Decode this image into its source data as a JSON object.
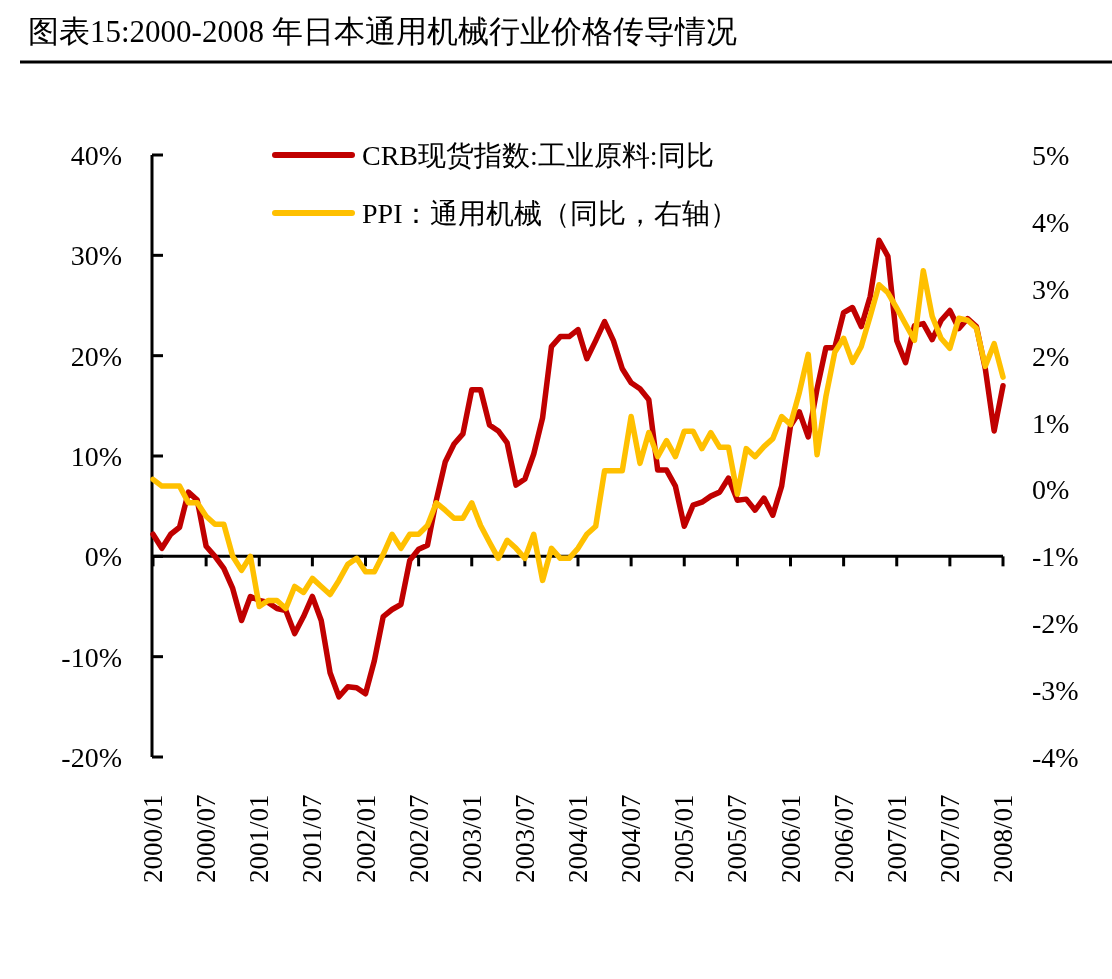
{
  "chart_data": {
    "type": "line",
    "title": "图表15:2000-2008 年日本通用机械行业价格传导情况",
    "categories": [
      "2000/01",
      null,
      null,
      null,
      null,
      null,
      "2000/07",
      null,
      null,
      null,
      null,
      null,
      "2001/01",
      null,
      null,
      null,
      null,
      null,
      "2001/07",
      null,
      null,
      null,
      null,
      null,
      "2002/01",
      null,
      null,
      null,
      null,
      null,
      "2002/07",
      null,
      null,
      null,
      null,
      null,
      "2003/01",
      null,
      null,
      null,
      null,
      null,
      "2003/07",
      null,
      null,
      null,
      null,
      null,
      "2004/01",
      null,
      null,
      null,
      null,
      null,
      "2004/07",
      null,
      null,
      null,
      null,
      null,
      "2005/01",
      null,
      null,
      null,
      null,
      null,
      "2005/07",
      null,
      null,
      null,
      null,
      null,
      "2006/01",
      null,
      null,
      null,
      null,
      null,
      "2006/07",
      null,
      null,
      null,
      null,
      null,
      "2007/01",
      null,
      null,
      null,
      null,
      null,
      "2007/07",
      null,
      null,
      null,
      null,
      null,
      "2008/01"
    ],
    "series": [
      {
        "name": "CRB现货指数:工业原料:同比",
        "color": "#c00000",
        "values": [
          2.2,
          0.8,
          2.2,
          2.9,
          6.4,
          5.6,
          1.0,
          0,
          -1.2,
          -3.2,
          -6.4,
          -4.0,
          -4.4,
          -4.6,
          -5.2,
          -5.4,
          -7.7,
          -6.0,
          -4.0,
          -6.4,
          -11.6,
          -14.0,
          -13.0,
          -13.1,
          -13.7,
          -10.4,
          -6.0,
          -5.3,
          -4.8,
          -0.4,
          0.7,
          1.1,
          5.6,
          9.4,
          11.2,
          12.2,
          16.6,
          16.6,
          13.1,
          12.5,
          11.3,
          7.1,
          7.7,
          10.2,
          13.8,
          20.9,
          21.9,
          21.9,
          22.6,
          19.7,
          21.5,
          23.4,
          21.5,
          18.7,
          17.3,
          16.7,
          15.6,
          8.6,
          8.6,
          7.0,
          3.0,
          5.1,
          5.4,
          6.0,
          6.4,
          7.8,
          5.6,
          5.7,
          4.6,
          5.8,
          4.1,
          7.0,
          13.0,
          14.4,
          11.9,
          16.7,
          20.8,
          20.8,
          24.3,
          24.8,
          22.9,
          25.9,
          31.5,
          29.9,
          21.5,
          19.3,
          23.0,
          23.2,
          21.6,
          23.5,
          24.5,
          22.7,
          23.7,
          22.9,
          18.7,
          12.5,
          17.0
        ]
      },
      {
        "name": "PPI：通用机械（同比，右轴）",
        "color": "#ffc000",
        "axis": "y2",
        "values": [
          0.15,
          0.05,
          0.05,
          0.05,
          -0.2,
          -0.2,
          -0.4,
          -0.52,
          -0.52,
          -1.0,
          -1.21,
          -1.0,
          -1.75,
          -1.66,
          -1.66,
          -1.78,
          -1.45,
          -1.54,
          -1.33,
          -1.45,
          -1.57,
          -1.36,
          -1.12,
          -1.03,
          -1.23,
          -1.23,
          -0.97,
          -0.67,
          -0.88,
          -0.67,
          -0.67,
          -0.54,
          -0.2,
          -0.31,
          -0.43,
          -0.43,
          -0.2,
          -0.54,
          -0.79,
          -1.03,
          -0.76,
          -0.88,
          -1.03,
          -0.67,
          -1.36,
          -0.88,
          -1.03,
          -1.03,
          -0.88,
          -0.67,
          -0.55,
          0.28,
          0.28,
          0.28,
          1.09,
          0.39,
          0.85,
          0.49,
          0.73,
          0.49,
          0.87,
          0.87,
          0.61,
          0.85,
          0.63,
          0.63,
          -0.07,
          0.61,
          0.49,
          0.64,
          0.76,
          1.09,
          0.97,
          1.45,
          2.02,
          0.52,
          1.39,
          2.05,
          2.26,
          1.9,
          2.14,
          2.59,
          3.06,
          2.94,
          2.71,
          2.47,
          2.23,
          3.27,
          2.59,
          2.26,
          2.11,
          2.56,
          2.53,
          2.41,
          1.84,
          2.18,
          1.68
        ]
      }
    ],
    "ylim": [
      -20,
      40
    ],
    "yticks": [
      {
        "value": -20,
        "label": "-20%"
      },
      {
        "value": -10,
        "label": "-10%"
      },
      {
        "value": 0,
        "label": "0%"
      },
      {
        "value": 10,
        "label": "10%"
      },
      {
        "value": 20,
        "label": "20%"
      },
      {
        "value": 30,
        "label": "30%"
      },
      {
        "value": 40,
        "label": "40%"
      }
    ],
    "y2lim": [
      -4,
      5
    ],
    "y2ticks": [
      {
        "value": -4,
        "label": "-4%"
      },
      {
        "value": -3,
        "label": "-3%"
      },
      {
        "value": -2,
        "label": "-2%"
      },
      {
        "value": -1,
        "label": "-1%"
      },
      {
        "value": 0,
        "label": "0%"
      },
      {
        "value": 1,
        "label": "1%"
      },
      {
        "value": 2,
        "label": "2%"
      },
      {
        "value": 3,
        "label": "3%"
      },
      {
        "value": 4,
        "label": "4%"
      },
      {
        "value": 5,
        "label": "5%"
      }
    ],
    "legend": "top",
    "marker": "none",
    "line_style": "solid"
  }
}
